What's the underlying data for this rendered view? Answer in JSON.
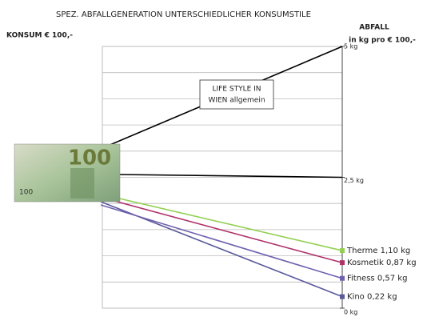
{
  "chart_data": {
    "type": "line",
    "title": "SPEZ. ABFALLGENERATION UNTERSCHIEDLICHER KONSUMSTILE",
    "left_label": "KONSUM € 100,-",
    "right_label": [
      "ABFALL",
      "in kg pro € 100,-"
    ],
    "annotation": [
      "LIFE STYLE IN",
      "WIEN allgemein"
    ],
    "banknote": "100",
    "ylim": [
      0,
      5
    ],
    "yticks": [
      {
        "value": 5,
        "label": "5 kg"
      },
      {
        "value": 2.5,
        "label": "2,5 kg"
      },
      {
        "value": 0,
        "label": "0 kg"
      }
    ],
    "gridlines": [
      0,
      0.5,
      1,
      1.5,
      2,
      2.5,
      3,
      3.5,
      4,
      4.5,
      5
    ],
    "series": [
      {
        "color": "#000000",
        "values": [
          5
        ]
      },
      {
        "color": "#000000",
        "values": [
          2.5
        ]
      },
      {
        "name": "Therme",
        "color": "#92d050",
        "values": [
          1.1
        ],
        "value_labels": [
          "1,10 kg"
        ]
      },
      {
        "name": "Kosmetik",
        "color": "#b0306a",
        "values": [
          0.87
        ],
        "value_labels": [
          "0,87 kg"
        ]
      },
      {
        "name": "Kino",
        "color": "#5a5a9a",
        "values": [
          0.22
        ],
        "value_labels": [
          "0,22 kg"
        ]
      },
      {
        "name": "Fitness",
        "color": "#7060b0",
        "values": [
          0.57
        ],
        "value_labels": [
          "0,57 kg"
        ]
      }
    ]
  }
}
